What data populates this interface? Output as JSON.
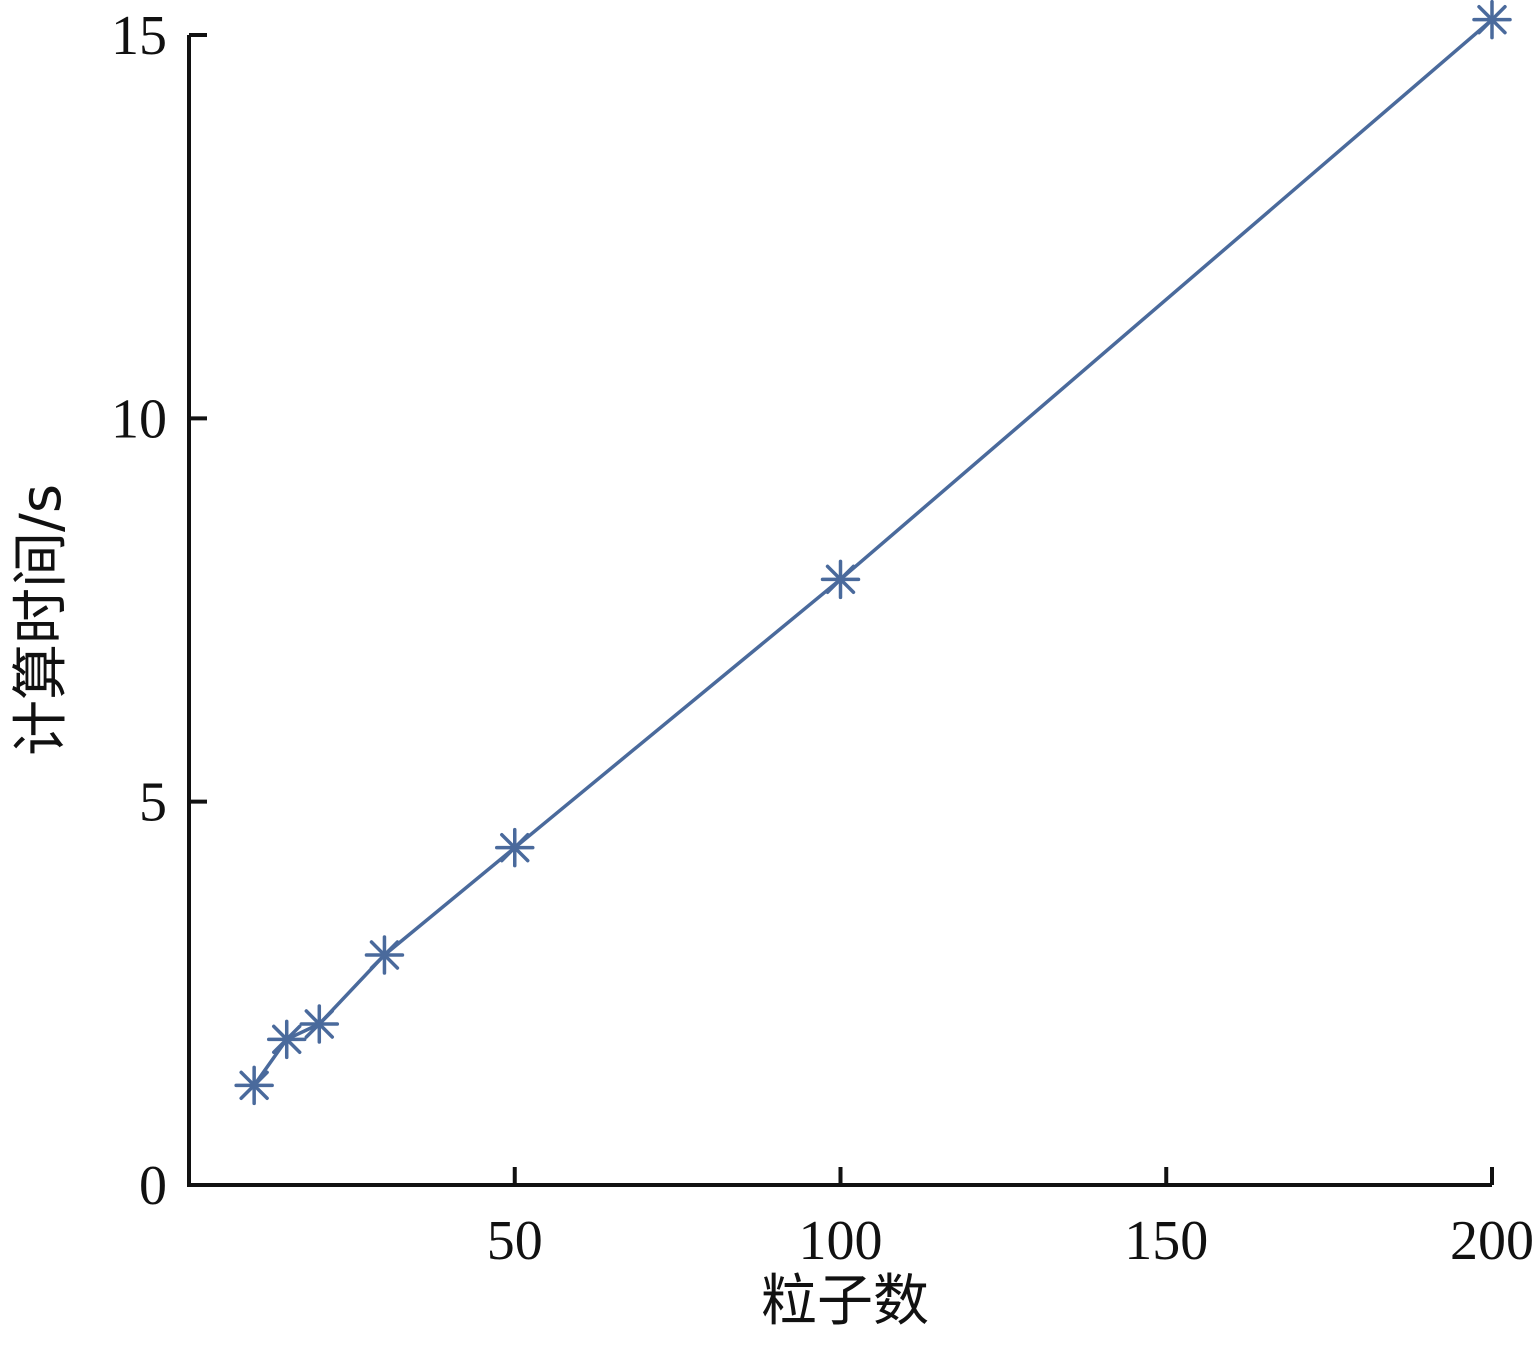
{
  "chart_data": {
    "type": "line",
    "xlabel": "粒子数",
    "ylabel": "计算时间/s",
    "xlim": [
      0,
      200
    ],
    "ylim": [
      0,
      15
    ],
    "xticks": [
      50,
      100,
      150,
      200
    ],
    "yticks": [
      0,
      5,
      10,
      15
    ],
    "grid": false,
    "series": [
      {
        "marker": "asterisk",
        "color": "#4a6a9c",
        "x": [
          10,
          15,
          20,
          30,
          50,
          100,
          200
        ],
        "y": [
          1.3,
          1.9,
          2.1,
          3.0,
          4.4,
          7.9,
          15.2
        ]
      }
    ]
  }
}
